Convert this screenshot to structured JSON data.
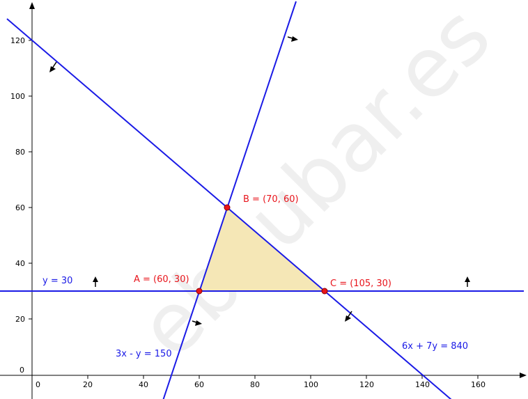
{
  "watermark": "ebaubar.es",
  "axes": {
    "x_ticks": [
      "0",
      "20",
      "40",
      "60",
      "80",
      "100",
      "120",
      "140",
      "160"
    ],
    "y_ticks": [
      "0",
      "20",
      "40",
      "60",
      "80",
      "100",
      "120"
    ]
  },
  "lines": [
    {
      "id": "l1",
      "label": "y = 30",
      "color": "#1a1ae6"
    },
    {
      "id": "l2",
      "label": "3x - y = 150",
      "color": "#1a1ae6"
    },
    {
      "id": "l3",
      "label": "6x + 7y = 840",
      "color": "#1a1ae6"
    }
  ],
  "points": [
    {
      "id": "A",
      "label": "A = (60, 30)",
      "x": 60,
      "y": 30
    },
    {
      "id": "B",
      "label": "B = (70, 60)",
      "x": 70,
      "y": 60
    },
    {
      "id": "C",
      "label": "C = (105, 30)",
      "x": 105,
      "y": 30
    }
  ],
  "colors": {
    "axis": "#000000",
    "line": "#1a1ae6",
    "point": "#e8141b",
    "region_fill": "#f5e7b6",
    "watermark": "#efefef"
  }
}
